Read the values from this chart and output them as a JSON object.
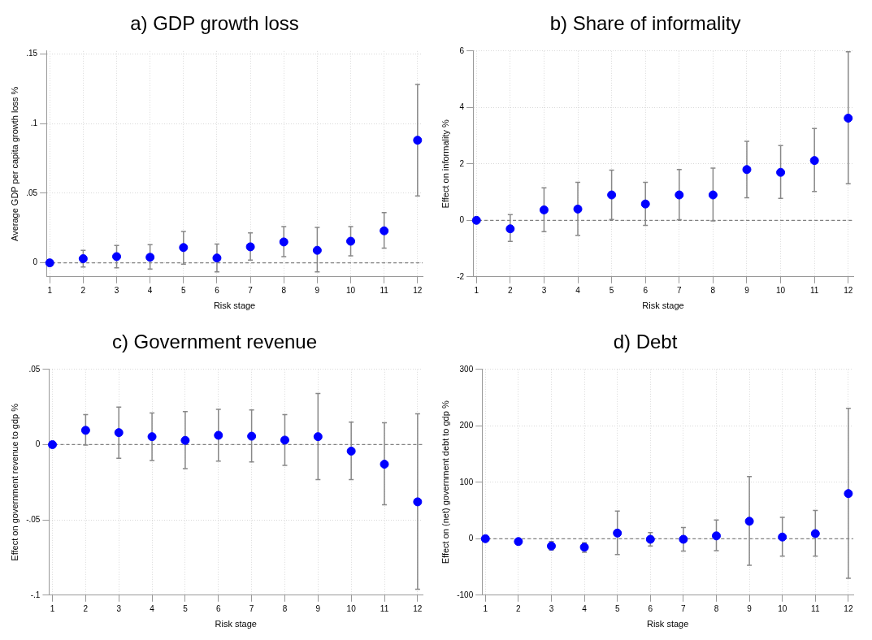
{
  "chart_data": [
    {
      "type": "scatter",
      "title": "a) GDP growth loss",
      "xlabel": "Risk stage",
      "ylabel": "Average GDP per capita growth loss %",
      "marker": "circle",
      "grid": true,
      "legend": false,
      "x": [
        1,
        2,
        3,
        4,
        5,
        6,
        7,
        8,
        9,
        10,
        11,
        12
      ],
      "xlim": [
        0.9,
        12.15
      ],
      "xticks": [
        1,
        2,
        3,
        4,
        5,
        6,
        7,
        8,
        9,
        10,
        11,
        12
      ],
      "ylim": [
        -0.01,
        0.152
      ],
      "yticks": [
        {
          "value": 0,
          "label": "0"
        },
        {
          "value": 0.05,
          "label": ".05"
        },
        {
          "value": 0.1,
          "label": ".1"
        },
        {
          "value": 0.15,
          "label": ".15"
        }
      ],
      "ref_lines": [
        {
          "axis": "y",
          "value": 0,
          "color": "#808080",
          "line_style": "dashed"
        }
      ],
      "series": [
        {
          "color": "#0000ff",
          "values": [
            0,
            0.003,
            0.0045,
            0.004,
            0.011,
            0.0035,
            0.0115,
            0.015,
            0.009,
            0.0155,
            0.023,
            0.088
          ],
          "errors": [
            null,
            [
              -0.003,
              0.009
            ],
            [
              -0.0035,
              0.0125
            ],
            [
              -0.0045,
              0.013
            ],
            [
              -0.001,
              0.0225
            ],
            [
              -0.0065,
              0.0135
            ],
            [
              0.002,
              0.0215
            ],
            [
              0.0045,
              0.026
            ],
            [
              -0.0065,
              0.0255
            ],
            [
              0.005,
              0.026
            ],
            [
              0.0105,
              0.036
            ],
            [
              0.048,
              0.128
            ]
          ]
        }
      ]
    },
    {
      "type": "scatter",
      "title": "b) Share of informality",
      "xlabel": "Risk stage",
      "ylabel": "Effect on informality %",
      "marker": "circle",
      "grid": true,
      "legend": false,
      "x": [
        1,
        2,
        3,
        4,
        5,
        6,
        7,
        8,
        9,
        10,
        11,
        12
      ],
      "xlim": [
        0.9,
        12.15
      ],
      "xticks": [
        1,
        2,
        3,
        4,
        5,
        6,
        7,
        8,
        9,
        10,
        11,
        12
      ],
      "ylim": [
        -2,
        6
      ],
      "yticks": [
        -2,
        0,
        2,
        4,
        6
      ],
      "ref_lines": [
        {
          "axis": "y",
          "value": 0,
          "color": "#808080",
          "line_style": "dashed"
        }
      ],
      "series": [
        {
          "color": "#0000ff",
          "values": [
            0,
            -0.3,
            0.37,
            0.4,
            0.9,
            0.58,
            0.9,
            0.9,
            1.8,
            1.7,
            2.12,
            3.62
          ],
          "errors": [
            null,
            [
              -0.75,
              0.2
            ],
            [
              -0.4,
              1.15
            ],
            [
              -0.53,
              1.35
            ],
            [
              0.03,
              1.78
            ],
            [
              -0.18,
              1.35
            ],
            [
              0.02,
              1.8
            ],
            [
              -0.02,
              1.85
            ],
            [
              0.8,
              2.8
            ],
            [
              0.78,
              2.65
            ],
            [
              1.02,
              3.25
            ],
            [
              1.3,
              5.97
            ]
          ]
        }
      ]
    },
    {
      "type": "scatter",
      "title": "c) Government revenue",
      "xlabel": "Risk stage",
      "ylabel": "Effect on government revenue to gdp %",
      "marker": "circle",
      "grid": true,
      "legend": false,
      "x": [
        1,
        2,
        3,
        4,
        5,
        6,
        7,
        8,
        9,
        10,
        11,
        12
      ],
      "xlim": [
        0.9,
        12.15
      ],
      "xticks": [
        1,
        2,
        3,
        4,
        5,
        6,
        7,
        8,
        9,
        10,
        11,
        12
      ],
      "ylim": [
        -0.1,
        0.05
      ],
      "yticks": [
        {
          "value": -0.1,
          "label": "-.1"
        },
        {
          "value": -0.05,
          "label": "-.05"
        },
        {
          "value": 0,
          "label": "0"
        },
        {
          "value": 0.05,
          "label": ".05"
        }
      ],
      "ref_lines": [
        {
          "axis": "y",
          "value": 0,
          "color": "#808080",
          "line_style": "dashed"
        }
      ],
      "series": [
        {
          "color": "#0000ff",
          "values": [
            0,
            0.0095,
            0.008,
            0.0053,
            0.0028,
            0.0062,
            0.0056,
            0.003,
            0.0053,
            -0.0043,
            -0.013,
            -0.038
          ],
          "errors": [
            null,
            [
              -0.0003,
              0.02
            ],
            [
              -0.009,
              0.025
            ],
            [
              -0.0105,
              0.021
            ],
            [
              -0.016,
              0.022
            ],
            [
              -0.011,
              0.0235
            ],
            [
              -0.0115,
              0.023
            ],
            [
              -0.0138,
              0.02
            ],
            [
              -0.0232,
              0.034
            ],
            [
              -0.0232,
              0.015
            ],
            [
              -0.04,
              0.0145
            ],
            [
              -0.096,
              0.0205
            ]
          ]
        }
      ]
    },
    {
      "type": "scatter",
      "title": "d) Debt",
      "xlabel": "Risk stage",
      "ylabel": "Effect on (net) government debt to gdp %",
      "marker": "circle",
      "grid": true,
      "legend": false,
      "x": [
        1,
        2,
        3,
        4,
        5,
        6,
        7,
        8,
        9,
        10,
        11,
        12
      ],
      "xlim": [
        0.9,
        12.15
      ],
      "xticks": [
        1,
        2,
        3,
        4,
        5,
        6,
        7,
        8,
        9,
        10,
        11,
        12
      ],
      "ylim": [
        -100,
        300
      ],
      "yticks": [
        -100,
        0,
        100,
        200,
        300
      ],
      "ref_lines": [
        {
          "axis": "y",
          "value": 0,
          "color": "#808080",
          "line_style": "dashed"
        }
      ],
      "series": [
        {
          "color": "#0000ff",
          "values": [
            0,
            -5,
            -13,
            -15,
            10,
            -1,
            -1,
            5,
            31,
            3,
            9,
            80
          ],
          "errors": [
            null,
            null,
            [
              -20,
              -5
            ],
            [
              -24,
              -7
            ],
            [
              -28,
              49
            ],
            [
              -13,
              11
            ],
            [
              -22,
              20
            ],
            [
              -21,
              33
            ],
            [
              -47,
              110
            ],
            [
              -31,
              38
            ],
            [
              -31,
              50
            ],
            [
              -70,
              231
            ]
          ]
        }
      ]
    }
  ]
}
